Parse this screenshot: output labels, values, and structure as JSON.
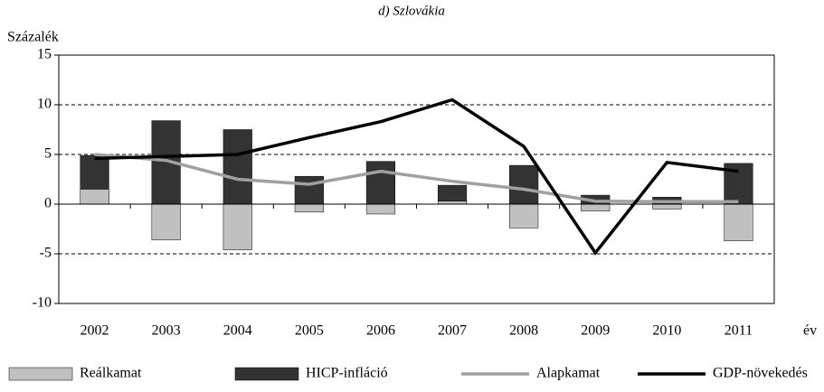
{
  "chart_data": {
    "type": "bar",
    "title": "d) Szlovákia",
    "y_label": "Százalék",
    "x_label": "év",
    "categories": [
      "2002",
      "2003",
      "2004",
      "2005",
      "2006",
      "2007",
      "2008",
      "2009",
      "2010",
      "2011"
    ],
    "series": [
      {
        "name": "HICP-infláció",
        "type": "bar",
        "color": "#333333",
        "values": [
          4.9,
          8.4,
          7.5,
          2.8,
          4.3,
          1.9,
          3.9,
          0.9,
          0.7,
          4.1
        ]
      },
      {
        "name": "Reálkamat",
        "type": "bar",
        "color": "#c0c0c0",
        "values": [
          1.5,
          -3.6,
          -4.6,
          -0.8,
          -1.0,
          0.3,
          -2.4,
          -0.7,
          -0.5,
          -3.7
        ]
      },
      {
        "name": "Alapkamat",
        "type": "line",
        "color": "#a0a0a0",
        "values": [
          5.0,
          4.4,
          2.5,
          2.0,
          3.3,
          2.3,
          1.5,
          0.3,
          0.25,
          0.25
        ]
      },
      {
        "name": "GDP-növekedés",
        "type": "line",
        "color": "#000000",
        "values": [
          4.6,
          4.8,
          5.0,
          6.7,
          8.3,
          10.5,
          5.8,
          -4.9,
          4.2,
          3.3
        ]
      }
    ],
    "legend_order": [
      1,
      0,
      2,
      3
    ],
    "ylim": [
      -10,
      15
    ],
    "yticks": [
      -10,
      -5,
      0,
      5,
      10,
      15
    ],
    "grid": true
  }
}
